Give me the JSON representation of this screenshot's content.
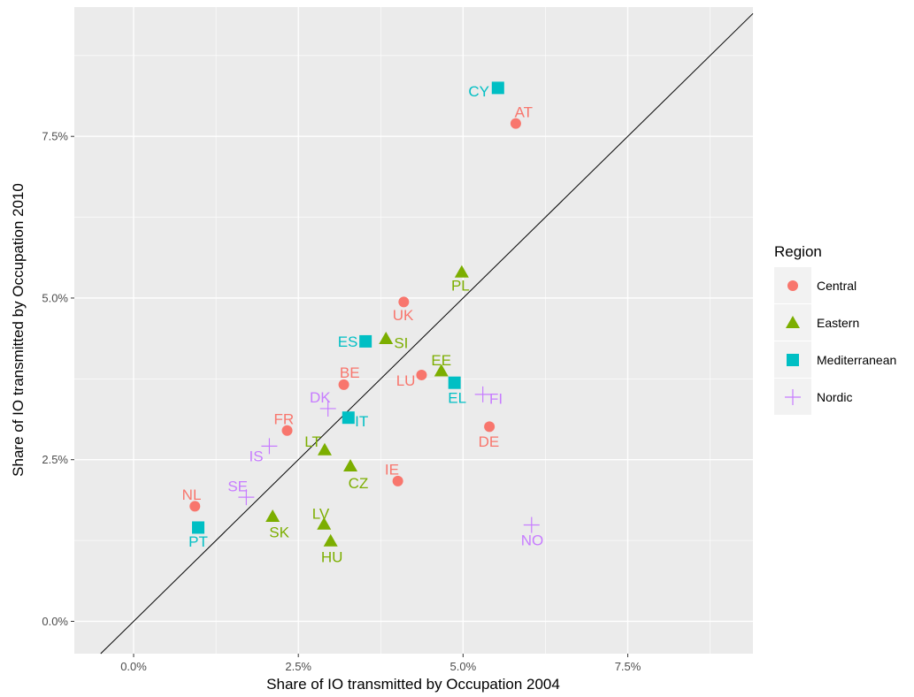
{
  "chart_data": {
    "type": "scatter",
    "xlabel": "Share of IO transmitted by Occupation 2004",
    "ylabel": "Share of IO transmitted by Occupation 2010",
    "xlim": [
      -0.009,
      0.094
    ],
    "ylim": [
      -0.005,
      0.095
    ],
    "xticks": [
      0,
      0.025,
      0.05,
      0.075
    ],
    "yticks": [
      0,
      0.025,
      0.05,
      0.075
    ],
    "tick_labels": [
      "0.0%",
      "2.5%",
      "5.0%",
      "7.5%"
    ],
    "grid": true,
    "reference_line": "y = x",
    "legend": {
      "title": "Region",
      "position": "right",
      "entries": [
        {
          "name": "Central",
          "shape": "circle",
          "color": "#F8766D"
        },
        {
          "name": "Eastern",
          "shape": "triangle",
          "color": "#7CAE00"
        },
        {
          "name": "Mediterranean",
          "shape": "square",
          "color": "#00BFC4"
        },
        {
          "name": "Nordic",
          "shape": "plus",
          "color": "#C77CFF"
        }
      ]
    },
    "points": [
      {
        "label": "AT",
        "region": "Central",
        "x": 0.058,
        "y": 0.077,
        "lx": 0.0592,
        "ly": 0.0788
      },
      {
        "label": "UK",
        "region": "Central",
        "x": 0.041,
        "y": 0.0494,
        "lx": 0.0409,
        "ly": 0.0474
      },
      {
        "label": "BE",
        "region": "Central",
        "x": 0.0319,
        "y": 0.0366,
        "lx": 0.0328,
        "ly": 0.0385
      },
      {
        "label": "LU",
        "region": "Central",
        "x": 0.0437,
        "y": 0.0381,
        "lx": 0.0413,
        "ly": 0.0373
      },
      {
        "label": "FR",
        "region": "Central",
        "x": 0.0233,
        "y": 0.0295,
        "lx": 0.0228,
        "ly": 0.0313
      },
      {
        "label": "IE",
        "region": "Central",
        "x": 0.0401,
        "y": 0.0217,
        "lx": 0.0392,
        "ly": 0.0235
      },
      {
        "label": "DE",
        "region": "Central",
        "x": 0.054,
        "y": 0.0301,
        "lx": 0.0539,
        "ly": 0.0278
      },
      {
        "label": "NL",
        "region": "Central",
        "x": 0.0093,
        "y": 0.0178,
        "lx": 0.0088,
        "ly": 0.0196
      },
      {
        "label": "PL",
        "region": "Eastern",
        "x": 0.0498,
        "y": 0.054,
        "lx": 0.0496,
        "ly": 0.052
      },
      {
        "label": "SI",
        "region": "Eastern",
        "x": 0.0383,
        "y": 0.0437,
        "lx": 0.0406,
        "ly": 0.0431
      },
      {
        "label": "EE",
        "region": "Eastern",
        "x": 0.0467,
        "y": 0.0387,
        "lx": 0.0467,
        "ly": 0.0404
      },
      {
        "label": "LT",
        "region": "Eastern",
        "x": 0.029,
        "y": 0.0265,
        "lx": 0.0272,
        "ly": 0.0278
      },
      {
        "label": "CZ",
        "region": "Eastern",
        "x": 0.0329,
        "y": 0.024,
        "lx": 0.0341,
        "ly": 0.0214
      },
      {
        "label": "SK",
        "region": "Eastern",
        "x": 0.0211,
        "y": 0.0162,
        "lx": 0.0221,
        "ly": 0.0138
      },
      {
        "label": "LV",
        "region": "Eastern",
        "x": 0.0289,
        "y": 0.015,
        "lx": 0.0284,
        "ly": 0.0167
      },
      {
        "label": "HU",
        "region": "Eastern",
        "x": 0.0299,
        "y": 0.0124,
        "lx": 0.0301,
        "ly": 0.01
      },
      {
        "label": "CY",
        "region": "Mediterranean",
        "x": 0.0553,
        "y": 0.0825,
        "lx": 0.0524,
        "ly": 0.082
      },
      {
        "label": "ES",
        "region": "Mediterranean",
        "x": 0.0352,
        "y": 0.0433,
        "lx": 0.0325,
        "ly": 0.0433
      },
      {
        "label": "EL",
        "region": "Mediterranean",
        "x": 0.0487,
        "y": 0.0369,
        "lx": 0.0491,
        "ly": 0.0346
      },
      {
        "label": "IT",
        "region": "Mediterranean",
        "x": 0.0326,
        "y": 0.0315,
        "lx": 0.0346,
        "ly": 0.031
      },
      {
        "label": "PT",
        "region": "Mediterranean",
        "x": 0.0098,
        "y": 0.0145,
        "lx": 0.0098,
        "ly": 0.0124
      },
      {
        "label": "FI",
        "region": "Nordic",
        "x": 0.053,
        "y": 0.0351,
        "lx": 0.055,
        "ly": 0.0345
      },
      {
        "label": "DK",
        "region": "Nordic",
        "x": 0.0295,
        "y": 0.0329,
        "lx": 0.0283,
        "ly": 0.0347
      },
      {
        "label": "IS",
        "region": "Nordic",
        "x": 0.0206,
        "y": 0.0271,
        "lx": 0.0186,
        "ly": 0.0256
      },
      {
        "label": "SE",
        "region": "Nordic",
        "x": 0.0171,
        "y": 0.0192,
        "lx": 0.0158,
        "ly": 0.0209
      },
      {
        "label": "NO",
        "region": "Nordic",
        "x": 0.0604,
        "y": 0.0149,
        "lx": 0.0605,
        "ly": 0.0126
      }
    ]
  }
}
